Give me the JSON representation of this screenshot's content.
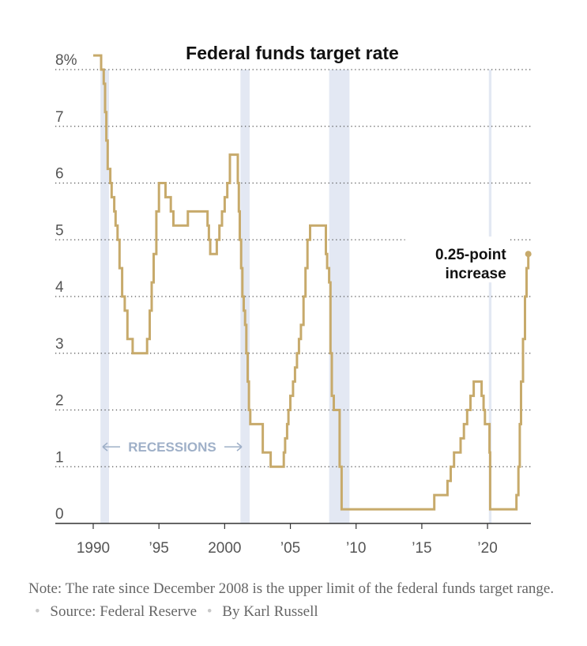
{
  "chart_data": {
    "type": "line",
    "step": true,
    "title": "Federal funds target rate",
    "ylim": [
      0,
      8
    ],
    "xlim": [
      1990,
      2023.3
    ],
    "y_ticks": [
      {
        "value": 8,
        "label": "8%"
      },
      {
        "value": 7,
        "label": "7"
      },
      {
        "value": 6,
        "label": "6"
      },
      {
        "value": 5,
        "label": "5"
      },
      {
        "value": 4,
        "label": "4"
      },
      {
        "value": 3,
        "label": "3"
      },
      {
        "value": 2,
        "label": "2"
      },
      {
        "value": 1,
        "label": "1"
      },
      {
        "value": 0,
        "label": "0"
      }
    ],
    "x_ticks": [
      {
        "value": 1990,
        "label": "1990"
      },
      {
        "value": 1995,
        "label": "’95"
      },
      {
        "value": 2000,
        "label": "2000"
      },
      {
        "value": 2005,
        "label": "’05"
      },
      {
        "value": 2010,
        "label": "’10"
      },
      {
        "value": 2015,
        "label": "’15"
      },
      {
        "value": 2020,
        "label": "’20"
      }
    ],
    "grid": "horizontal-dotted",
    "line_color": "#c7aa6b",
    "recession_color": "#e3e8f3",
    "recessions": [
      {
        "start": 1990.55,
        "end": 1991.2
      },
      {
        "start": 2001.2,
        "end": 2001.9
      },
      {
        "start": 2007.95,
        "end": 2009.5
      },
      {
        "start": 2020.1,
        "end": 2020.3
      }
    ],
    "recessions_label": "RECESSIONS",
    "annotation": {
      "text": [
        "0.25-point",
        "increase"
      ],
      "x": 2023.1,
      "y": 4.75
    },
    "series": [
      {
        "x": [
          1990.0,
          1990.3,
          1990.6,
          1990.8,
          1990.9,
          1991.0,
          1991.1,
          1991.3,
          1991.4,
          1991.6,
          1991.7,
          1991.85,
          1992.0,
          1992.2,
          1992.4,
          1992.6,
          1993.0,
          1994.1,
          1994.3,
          1994.45,
          1994.6,
          1994.8,
          1995.0,
          1995.5,
          1995.9,
          1996.1,
          1997.2,
          1998.7,
          1998.8,
          1998.9,
          1999.4,
          1999.6,
          1999.8,
          2000.0,
          2000.2,
          2000.4,
          2001.0,
          2001.08,
          2001.15,
          2001.25,
          2001.35,
          2001.45,
          2001.55,
          2001.65,
          2001.75,
          2001.85,
          2001.95,
          2002.9,
          2003.5,
          2004.5,
          2004.6,
          2004.75,
          2004.85,
          2005.0,
          2005.2,
          2005.35,
          2005.5,
          2005.65,
          2005.8,
          2006.0,
          2006.15,
          2006.3,
          2006.5,
          2007.7,
          2007.8,
          2007.95,
          2008.05,
          2008.15,
          2008.3,
          2008.75,
          2008.9,
          2015.95,
          2016.95,
          2017.2,
          2017.45,
          2017.95,
          2018.2,
          2018.45,
          2018.7,
          2018.95,
          2019.55,
          2019.7,
          2019.8,
          2020.15,
          2020.2,
          2022.2,
          2022.35,
          2022.45,
          2022.55,
          2022.7,
          2022.85,
          2022.97,
          2023.1
        ],
        "y": [
          8.25,
          8.25,
          8.0,
          7.75,
          7.25,
          6.75,
          6.25,
          6.0,
          5.75,
          5.5,
          5.25,
          5.0,
          4.5,
          4.0,
          3.75,
          3.25,
          3.0,
          3.25,
          3.75,
          4.25,
          4.75,
          5.5,
          6.0,
          5.75,
          5.5,
          5.25,
          5.5,
          5.25,
          5.0,
          4.75,
          5.0,
          5.25,
          5.5,
          5.75,
          6.0,
          6.5,
          6.0,
          5.5,
          5.0,
          4.5,
          4.0,
          3.75,
          3.5,
          3.0,
          2.5,
          2.0,
          1.75,
          1.25,
          1.0,
          1.25,
          1.5,
          1.75,
          2.0,
          2.25,
          2.5,
          2.75,
          3.0,
          3.25,
          3.5,
          4.0,
          4.5,
          5.0,
          5.25,
          4.75,
          4.5,
          4.25,
          3.0,
          2.25,
          2.0,
          1.0,
          0.25,
          0.5,
          0.75,
          1.0,
          1.25,
          1.5,
          1.75,
          2.0,
          2.25,
          2.5,
          2.25,
          2.0,
          1.75,
          1.25,
          0.25,
          0.5,
          1.0,
          1.75,
          2.5,
          3.25,
          4.0,
          4.5,
          4.75
        ]
      }
    ]
  },
  "note": {
    "text": "Note: The rate since December 2008 is the upper limit of the federal funds target range.",
    "source": "Source: Federal Reserve",
    "byline": "By Karl Russell"
  }
}
